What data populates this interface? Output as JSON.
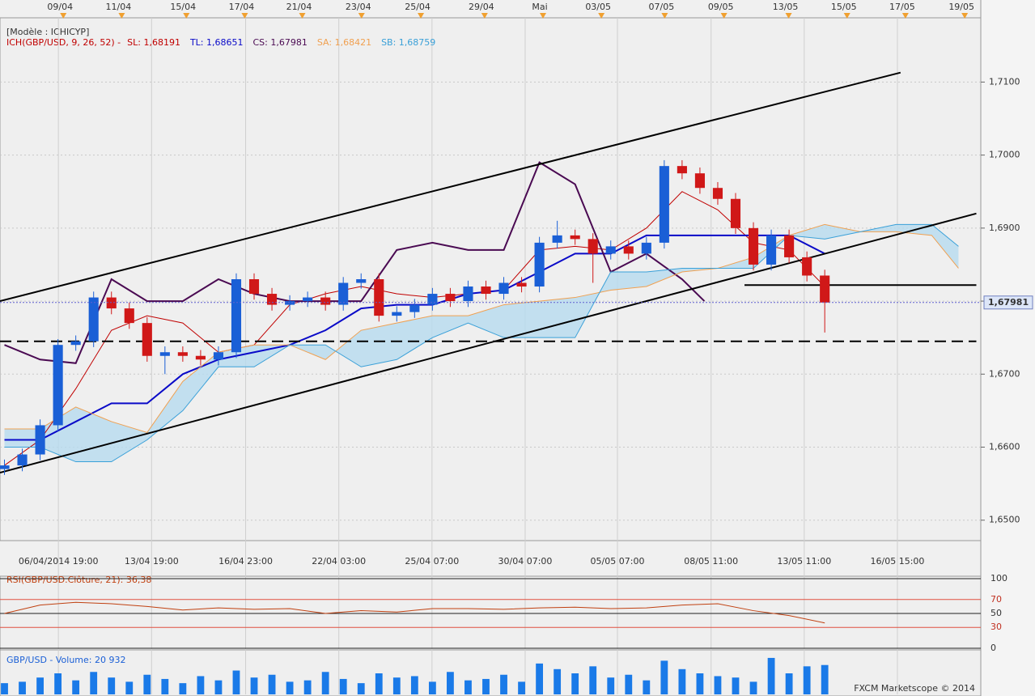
{
  "header": {
    "model": "[Modèle : ICHICYP]",
    "indicator": "ICH(GBP/USD, 9, 26, 52) -",
    "footer": "FXCM Marketscope © 2014"
  },
  "chart_data": [
    {
      "type": "candlestick",
      "xlim": [
        0,
        220
      ],
      "ylim": [
        1.6472,
        1.7188
      ],
      "yticks": [
        {
          "value": 1.71,
          "label": "1,7100"
        },
        {
          "value": 1.7,
          "label": "1,7000"
        },
        {
          "value": 1.69,
          "label": "1,6900"
        },
        {
          "value": 1.68,
          "label": "1,6800"
        },
        {
          "value": 1.67,
          "label": "1,6700"
        },
        {
          "value": 1.66,
          "label": "1,6600"
        },
        {
          "value": 1.65,
          "label": "1,6500"
        }
      ],
      "xticks": [
        {
          "value": 13.1,
          "label": "06/04/2014 19:00"
        },
        {
          "value": 34,
          "label": "13/04 19:00"
        },
        {
          "value": 55.1,
          "label": "16/04 23:00"
        },
        {
          "value": 76,
          "label": "22/04 03:00"
        },
        {
          "value": 96.9,
          "label": "25/04 07:00"
        },
        {
          "value": 117.8,
          "label": "30/04 07:00"
        },
        {
          "value": 138.5,
          "label": "05/05 07:00"
        },
        {
          "value": 159.5,
          "label": "08/05 11:00"
        },
        {
          "value": 180.4,
          "label": "13/05 11:00"
        },
        {
          "value": 201.3,
          "label": "16/05 15:00"
        }
      ],
      "xticks_top": [
        {
          "value": 14.2,
          "label": "09/04"
        },
        {
          "value": 27.3,
          "label": "11/04"
        },
        {
          "value": 41.8,
          "label": "15/04"
        },
        {
          "value": 54.9,
          "label": "17/04"
        },
        {
          "value": 67.8,
          "label": "21/04"
        },
        {
          "value": 81.1,
          "label": "23/04"
        },
        {
          "value": 94.4,
          "label": "25/04"
        },
        {
          "value": 108.7,
          "label": "29/04"
        },
        {
          "value": 121.8,
          "label": "Mai"
        },
        {
          "value": 134.9,
          "label": "03/05"
        },
        {
          "value": 149.1,
          "label": "07/05"
        },
        {
          "value": 162.4,
          "label": "09/05"
        },
        {
          "value": 176.9,
          "label": "13/05"
        },
        {
          "value": 190,
          "label": "15/05"
        },
        {
          "value": 203.1,
          "label": "17/05"
        },
        {
          "value": 216.4,
          "label": "19/05"
        }
      ],
      "up_color": "#1a5fd6",
      "down_color": "#d01818",
      "cloud_fill": "#b6dbef",
      "last_price": {
        "value": 1.67981,
        "label": "1,67981"
      },
      "x": [
        1,
        5,
        9,
        13,
        17,
        21,
        25,
        29,
        33,
        37,
        41,
        45,
        49,
        53,
        57,
        61,
        65,
        69,
        73,
        77,
        81,
        85,
        89,
        93,
        97,
        101,
        105,
        109,
        113,
        117,
        121,
        125,
        129,
        133,
        137,
        141,
        145,
        149,
        153,
        157,
        161,
        165,
        169,
        173,
        177,
        181,
        185
      ],
      "open": [
        1.657,
        1.6575,
        1.659,
        1.663,
        1.674,
        1.6745,
        1.6805,
        1.679,
        1.677,
        1.6725,
        1.673,
        1.6725,
        1.672,
        1.673,
        1.683,
        1.681,
        1.6795,
        1.68,
        1.6805,
        1.6795,
        1.6825,
        1.683,
        1.678,
        1.6785,
        1.6795,
        1.681,
        1.68,
        1.682,
        1.681,
        1.6825,
        1.682,
        1.688,
        1.689,
        1.6885,
        1.6865,
        1.6875,
        1.6865,
        1.688,
        1.6985,
        1.6975,
        1.6955,
        1.694,
        1.69,
        1.685,
        1.689,
        1.686,
        1.6835
      ],
      "high": [
        1.6583,
        1.6598,
        1.6638,
        1.6748,
        1.6753,
        1.6813,
        1.6813,
        1.6798,
        1.6778,
        1.6738,
        1.6738,
        1.6733,
        1.6738,
        1.6838,
        1.6838,
        1.6818,
        1.6808,
        1.6813,
        1.6813,
        1.6833,
        1.6838,
        1.6838,
        1.6793,
        1.6803,
        1.6818,
        1.6818,
        1.6828,
        1.6828,
        1.6833,
        1.6833,
        1.6888,
        1.691,
        1.6898,
        1.6893,
        1.6883,
        1.6883,
        1.6888,
        1.6993,
        1.6993,
        1.6983,
        1.6963,
        1.6948,
        1.6908,
        1.6898,
        1.6898,
        1.6868,
        1.6843
      ],
      "low": [
        1.6562,
        1.6567,
        1.6582,
        1.6622,
        1.6732,
        1.6737,
        1.6782,
        1.6762,
        1.6717,
        1.67,
        1.6717,
        1.6712,
        1.6712,
        1.6722,
        1.6802,
        1.6787,
        1.6787,
        1.6792,
        1.6787,
        1.6787,
        1.6817,
        1.6772,
        1.6772,
        1.6777,
        1.6787,
        1.6792,
        1.6792,
        1.6802,
        1.6802,
        1.6812,
        1.6812,
        1.6872,
        1.6877,
        1.6825,
        1.6857,
        1.6857,
        1.6857,
        1.6872,
        1.6967,
        1.6947,
        1.6932,
        1.6892,
        1.6842,
        1.6842,
        1.6852,
        1.6827,
        1.6757
      ],
      "close": [
        1.6575,
        1.659,
        1.663,
        1.674,
        1.6745,
        1.6805,
        1.679,
        1.677,
        1.6725,
        1.673,
        1.6725,
        1.672,
        1.673,
        1.683,
        1.681,
        1.6795,
        1.68,
        1.6805,
        1.6795,
        1.6825,
        1.683,
        1.678,
        1.6785,
        1.6795,
        1.681,
        1.68,
        1.682,
        1.681,
        1.6825,
        1.682,
        1.688,
        1.689,
        1.6885,
        1.6865,
        1.6875,
        1.6865,
        1.688,
        1.6985,
        1.6975,
        1.6955,
        1.694,
        1.69,
        1.685,
        1.689,
        1.686,
        1.6835,
        1.67981
      ],
      "series": [
        {
          "name": "SL: 1,68191",
          "color": "#c00000",
          "width": 1,
          "x": [
            1,
            9,
            17,
            25,
            33,
            41,
            49,
            57,
            65,
            73,
            81,
            89,
            97,
            105,
            113,
            121,
            129,
            137,
            145,
            153,
            161,
            169,
            177,
            185
          ],
          "values": [
            1.6575,
            1.661,
            1.668,
            1.676,
            1.678,
            1.677,
            1.673,
            1.674,
            1.6795,
            1.681,
            1.682,
            1.681,
            1.6805,
            1.681,
            1.6815,
            1.687,
            1.6875,
            1.687,
            1.69,
            1.695,
            1.6925,
            1.688,
            1.687,
            1.682
          ]
        },
        {
          "name": "TL: 1,68651",
          "color": "#0a0ac8",
          "width": 2,
          "x": [
            1,
            9,
            17,
            25,
            33,
            41,
            49,
            57,
            65,
            73,
            81,
            89,
            97,
            105,
            113,
            121,
            129,
            137,
            145,
            153,
            161,
            169,
            177,
            185
          ],
          "values": [
            1.661,
            1.661,
            1.6635,
            1.666,
            1.666,
            1.67,
            1.672,
            1.673,
            1.674,
            1.676,
            1.679,
            1.6795,
            1.6795,
            1.681,
            1.6815,
            1.684,
            1.6865,
            1.6865,
            1.689,
            1.689,
            1.689,
            1.689,
            1.689,
            1.6865
          ]
        },
        {
          "name": "CS: 1,67981",
          "color": "#4a0a52",
          "width": 2,
          "x": [
            1,
            9,
            17,
            25,
            33,
            41,
            49,
            57,
            65,
            73,
            81,
            89,
            97,
            105,
            113,
            121,
            129,
            137,
            145,
            153,
            158
          ],
          "values": [
            1.674,
            1.672,
            1.6715,
            1.683,
            1.68,
            1.68,
            1.683,
            1.681,
            1.68,
            1.68,
            1.68,
            1.687,
            1.688,
            1.687,
            1.687,
            1.699,
            1.696,
            1.684,
            1.6865,
            1.683,
            1.68
          ]
        },
        {
          "name": "SA: 1,68421",
          "color": "#f0a050",
          "width": 1,
          "x": [
            1,
            9,
            17,
            25,
            33,
            41,
            49,
            57,
            65,
            73,
            81,
            89,
            97,
            105,
            113,
            121,
            129,
            137,
            145,
            153,
            161,
            169,
            177,
            185,
            193,
            201,
            209,
            215
          ],
          "values": [
            1.6625,
            1.6625,
            1.6655,
            1.6635,
            1.662,
            1.669,
            1.673,
            1.674,
            1.674,
            1.672,
            1.676,
            1.677,
            1.678,
            1.678,
            1.6795,
            1.68,
            1.6805,
            1.6815,
            1.682,
            1.684,
            1.6845,
            1.686,
            1.689,
            1.6905,
            1.6895,
            1.6895,
            1.689,
            1.6845
          ]
        },
        {
          "name": "SB: 1,68759",
          "color": "#3aa0d8",
          "width": 1,
          "x": [
            1,
            9,
            17,
            25,
            33,
            41,
            49,
            57,
            65,
            73,
            81,
            89,
            97,
            105,
            113,
            121,
            129,
            137,
            145,
            153,
            161,
            169,
            177,
            185,
            193,
            201,
            209,
            215
          ],
          "values": [
            1.66,
            1.66,
            1.658,
            1.658,
            1.661,
            1.665,
            1.671,
            1.671,
            1.674,
            1.674,
            1.671,
            1.672,
            1.675,
            1.677,
            1.675,
            1.675,
            1.675,
            1.684,
            1.684,
            1.6845,
            1.6845,
            1.6845,
            1.689,
            1.6885,
            1.6895,
            1.6905,
            1.6905,
            1.6875
          ]
        }
      ],
      "lines": [
        {
          "x": [
            0,
            202
          ],
          "y": [
            1.68,
            1.7113
          ]
        },
        {
          "x": [
            0,
            219
          ],
          "y": [
            1.6565,
            1.692
          ]
        },
        {
          "x": [
            0,
            219
          ],
          "y": [
            1.6745,
            1.6745
          ],
          "dash": true
        },
        {
          "x": [
            167,
            219
          ],
          "y": [
            1.6822,
            1.6822
          ]
        }
      ]
    },
    {
      "type": "line",
      "title": "RSI(GBP/USD.Clôture, 21): 36,38",
      "xlim": [
        0,
        220
      ],
      "ylim": [
        0,
        100
      ],
      "yticks": [
        100,
        70,
        50,
        30,
        0
      ],
      "color": "#c04010",
      "x": [
        1,
        9,
        17,
        25,
        33,
        41,
        49,
        57,
        65,
        73,
        81,
        89,
        97,
        105,
        113,
        121,
        129,
        137,
        145,
        153,
        161,
        169,
        177,
        185
      ],
      "values": [
        50,
        62,
        66,
        64,
        60,
        55,
        58,
        56,
        57,
        50,
        54,
        52,
        57,
        57,
        56,
        58,
        59,
        57,
        58,
        62,
        64,
        54,
        47,
        36.38
      ]
    },
    {
      "type": "bar",
      "title": "GBP/USD - Volume: 20 932",
      "xlim": [
        0,
        220
      ],
      "ylim": [
        0,
        30000
      ],
      "color": "#1a7ae8",
      "x": [
        1,
        5,
        9,
        13,
        17,
        21,
        25,
        29,
        33,
        37,
        41,
        45,
        49,
        53,
        57,
        61,
        65,
        69,
        73,
        77,
        81,
        85,
        89,
        93,
        97,
        101,
        105,
        109,
        113,
        117,
        121,
        125,
        129,
        133,
        137,
        141,
        145,
        149,
        153,
        157,
        161,
        165,
        169,
        173,
        177,
        181,
        185
      ],
      "values": [
        8000,
        9000,
        12000,
        15000,
        10000,
        16000,
        12000,
        9000,
        14000,
        11000,
        8000,
        13000,
        10000,
        17000,
        12000,
        14000,
        9000,
        10000,
        16000,
        11000,
        8000,
        15000,
        12000,
        13000,
        9000,
        16000,
        10000,
        11000,
        14000,
        9000,
        22000,
        18000,
        15000,
        20000,
        12000,
        14000,
        10000,
        24000,
        18000,
        15000,
        13000,
        12000,
        9000,
        26000,
        15000,
        20000,
        20932
      ]
    }
  ]
}
